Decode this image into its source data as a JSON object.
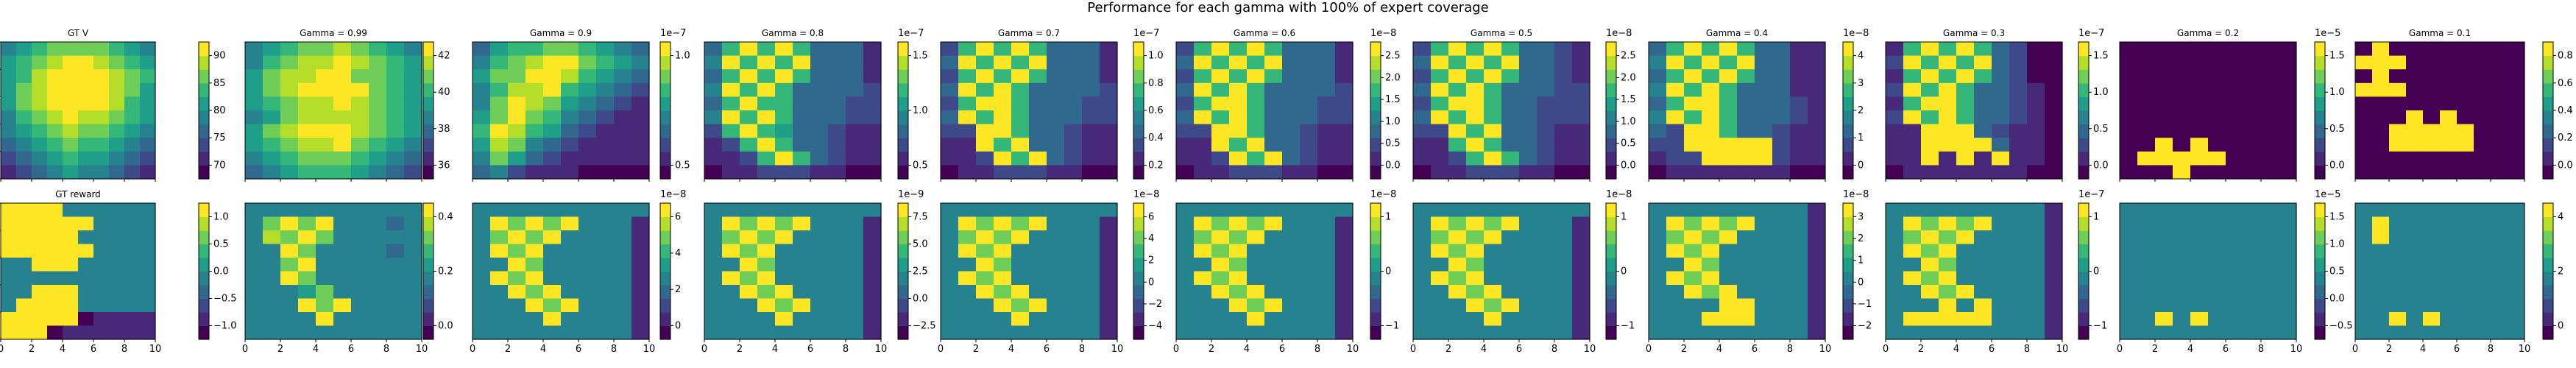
{
  "figure": {
    "title": "Performance for each gamma with 100% of expert coverage",
    "colormap": [
      "#440154",
      "#482878",
      "#3e4989",
      "#31688e",
      "#26828e",
      "#1f9e89",
      "#35b779",
      "#6ece58",
      "#b5de2b",
      "#fde725"
    ]
  },
  "chart_data": {
    "type": "heatmap",
    "grid": {
      "rows": 2,
      "cols": 11
    },
    "axes": {
      "xlim": [
        0,
        10
      ],
      "ylim": [
        0,
        10
      ],
      "xticks": [
        0,
        2,
        4,
        6,
        8,
        10
      ],
      "yticks": [
        0,
        2,
        4,
        6,
        8,
        10
      ]
    },
    "panels": [
      {
        "row": 0,
        "col": 0,
        "title": "GT V",
        "field": "gtv",
        "cbar_ticks": [
          "70",
          "75",
          "80",
          "85",
          "90"
        ],
        "cbar_offset": ""
      },
      {
        "row": 0,
        "col": 1,
        "title": "Gamma = 0.99",
        "field": "twin",
        "cbar_ticks": [
          "36",
          "38",
          "40",
          "42"
        ],
        "cbar_offset": ""
      },
      {
        "row": 0,
        "col": 2,
        "title": "Gamma = 0.9",
        "field": "diag",
        "cbar_ticks": [
          "0.5",
          "1.0"
        ],
        "cbar_offset": "1e−7"
      },
      {
        "row": 0,
        "col": 3,
        "title": "Gamma = 0.8",
        "field": "check_a",
        "cbar_ticks": [
          "0.5",
          "1.0",
          "1.5"
        ],
        "cbar_offset": "1e−7"
      },
      {
        "row": 0,
        "col": 4,
        "title": "Gamma = 0.7",
        "field": "check_b",
        "cbar_ticks": [
          "0.2",
          "0.4",
          "0.6",
          "0.8",
          "1.0"
        ],
        "cbar_offset": "1e−7"
      },
      {
        "row": 0,
        "col": 5,
        "title": "Gamma = 0.6",
        "field": "check_b",
        "cbar_ticks": [
          "0.0",
          "0.5",
          "1.0",
          "1.5",
          "2.0",
          "2.5"
        ],
        "cbar_offset": "1e−8"
      },
      {
        "row": 0,
        "col": 6,
        "title": "Gamma = 0.5",
        "field": "check_c",
        "cbar_ticks": [
          "0.0",
          "0.5",
          "1.0",
          "1.5",
          "2.0",
          "2.5"
        ],
        "cbar_offset": "1e−8"
      },
      {
        "row": 0,
        "col": 7,
        "title": "Gamma = 0.4",
        "field": "check_d",
        "cbar_ticks": [
          "0",
          "1",
          "2",
          "3",
          "4"
        ],
        "cbar_offset": "1e−8"
      },
      {
        "row": 0,
        "col": 8,
        "title": "Gamma = 0.3",
        "field": "check_e",
        "cbar_ticks": [
          "0.0",
          "0.5",
          "1.0",
          "1.5"
        ],
        "cbar_offset": "1e−7"
      },
      {
        "row": 0,
        "col": 9,
        "title": "Gamma = 0.2",
        "field": "sparse_a",
        "cbar_ticks": [
          "0.0",
          "0.5",
          "1.0",
          "1.5"
        ],
        "cbar_offset": "1e−5"
      },
      {
        "row": 0,
        "col": 10,
        "title": "Gamma = 0.1",
        "field": "sparse_b",
        "cbar_ticks": [
          "0.0",
          "0.2",
          "0.4",
          "0.6",
          "0.8"
        ],
        "cbar_offset": ""
      },
      {
        "row": 1,
        "col": 0,
        "title": "GT reward",
        "field": "reward",
        "cbar_ticks": [
          "−1.0",
          "−0.5",
          "0.0",
          "0.5",
          "1.0"
        ],
        "cbar_offset": ""
      },
      {
        "row": 1,
        "col": 1,
        "title": "",
        "field": "rew_a",
        "cbar_ticks": [
          "0.0",
          "0.2",
          "0.4"
        ],
        "cbar_offset": ""
      },
      {
        "row": 1,
        "col": 2,
        "title": "",
        "field": "rew_b",
        "cbar_ticks": [
          "0",
          "2",
          "4",
          "6"
        ],
        "cbar_offset": "1e−8"
      },
      {
        "row": 1,
        "col": 3,
        "title": "",
        "field": "rew_b",
        "cbar_ticks": [
          "−2.5",
          "0.0",
          "2.5",
          "5.0",
          "7.5"
        ],
        "cbar_offset": "1e−9"
      },
      {
        "row": 1,
        "col": 4,
        "title": "",
        "field": "rew_b",
        "cbar_ticks": [
          "−4",
          "−2",
          "0",
          "2",
          "4",
          "6"
        ],
        "cbar_offset": "1e−8"
      },
      {
        "row": 1,
        "col": 5,
        "title": "",
        "field": "rew_b",
        "cbar_ticks": [
          "−1",
          "0",
          "1"
        ],
        "cbar_offset": "1e−8"
      },
      {
        "row": 1,
        "col": 6,
        "title": "",
        "field": "rew_b",
        "cbar_ticks": [
          "−1",
          "0",
          "1"
        ],
        "cbar_offset": "1e−8"
      },
      {
        "row": 1,
        "col": 7,
        "title": "",
        "field": "rew_c",
        "cbar_ticks": [
          "−2",
          "−1",
          "0",
          "1",
          "2",
          "3"
        ],
        "cbar_offset": "1e−8"
      },
      {
        "row": 1,
        "col": 8,
        "title": "",
        "field": "rew_d",
        "cbar_ticks": [
          "−1",
          "0",
          "1"
        ],
        "cbar_offset": "1e−7"
      },
      {
        "row": 1,
        "col": 9,
        "title": "",
        "field": "rew_e",
        "cbar_ticks": [
          "−0.5",
          "0.0",
          "0.5",
          "1.0",
          "1.5"
        ],
        "cbar_offset": "1e−5"
      },
      {
        "row": 1,
        "col": 10,
        "title": "",
        "field": "rew_f",
        "cbar_ticks": [
          "0",
          "2",
          "4"
        ],
        "cbar_offset": ""
      }
    ],
    "fields": {
      "gtv": [
        "4567777654",
        "5678998765",
        "5689999876",
        "5789999875",
        "5789999865",
        "4678988765",
        "4567877654",
        "3456766543",
        "2345655432",
        "1234544321"
      ],
      "twin": [
        "4567787654",
        "4678898765",
        "5788997765",
        "5789999765",
        "5678898765",
        "4578888765",
        "5789998765",
        "5678897654",
        "4567776543",
        "3456665432"
      ],
      "diag": [
        "3566776543",
        "4678997654",
        "5779986543",
        "4688965432",
        "4798754321",
        "5797643211",
        "6986532111",
        "5874321111",
        "4753211111",
        "3421110000"
      ],
      "check_a": [
        "3696963331",
        "4969693331",
        "3696963331",
        "4969633332",
        "3696633322",
        "4969633322",
        "2696533211",
        "1269633211",
        "1126963211",
        "0112221100"
      ],
      "check_b": [
        "2696963331",
        "3969693331",
        "2696963331",
        "3969633332",
        "2699633322",
        "3969633322",
        "2299633211",
        "1196933211",
        "1129693211",
        "0112221100"
      ],
      "check_c": [
        "2696963321",
        "3969693321",
        "2696963321",
        "3969633322",
        "2699633222",
        "3969633222",
        "2296933211",
        "1169633211",
        "1126963211",
        "0112221100"
      ],
      "check_d": [
        "3696963311",
        "4969693311",
        "3696963311",
        "4969633311",
        "3699633321",
        "4969633321",
        "3299633211",
        "2299999211",
        "1229999211",
        "0111111100"
      ],
      "check_e": [
        "1696963200",
        "2969693200",
        "1696963200",
        "2969633210",
        "1699633210",
        "2969633210",
        "1199932110",
        "1199993110",
        "1191919110",
        "0111111100"
      ],
      "sparse_a": [
        "0000000000",
        "0000000000",
        "0000000000",
        "0000000000",
        "0000000000",
        "0000000000",
        "0000000000",
        "0090900000",
        "0999990000",
        "0009000000"
      ],
      "sparse_b": [
        "0900000000",
        "9990000000",
        "0900000000",
        "9990000000",
        "0000000000",
        "0009090000",
        "0099999000",
        "0099999000",
        "0000000000",
        "0000000000"
      ],
      "reward": [
        "9999444444",
        "9999994444",
        "9999944444",
        "9999994444",
        "4499944444",
        "4444444444",
        "4499944444",
        "4999944444",
        "9999901111",
        "9990111111"
      ],
      "rew_a": [
        "4444444444",
        "4797944434",
        "4879744444",
        "4497444434",
        "4479444444",
        "4497444444",
        "4445744444",
        "4449794444",
        "4444944444",
        "4444444444"
      ],
      "rew_b": [
        "4444444444",
        "4979794441",
        "4797944441",
        "4979444441",
        "4497444441",
        "4979444441",
        "4497944441",
        "4449794441",
        "4444944441",
        "4444444441"
      ],
      "rew_c": [
        "4444444441",
        "4979794441",
        "4797944441",
        "4979444441",
        "4497444441",
        "4979444441",
        "4497944441",
        "4444994441",
        "4449994441",
        "4444444441"
      ],
      "rew_d": [
        "4444444441",
        "4979794441",
        "4797944441",
        "4979444441",
        "4497444441",
        "4979444441",
        "4497944441",
        "4449494441",
        "4999994441",
        "4444444441"
      ],
      "rew_e": [
        "4444444444",
        "4444444444",
        "4444444444",
        "4444444444",
        "4444444444",
        "4444444444",
        "4444444444",
        "4444444444",
        "4494944444",
        "4444444444"
      ],
      "rew_f": [
        "4444444444",
        "4944444444",
        "4944444444",
        "4444444444",
        "4444444444",
        "4444444444",
        "4444444444",
        "4444444444",
        "4494944444",
        "4444444444"
      ]
    }
  }
}
